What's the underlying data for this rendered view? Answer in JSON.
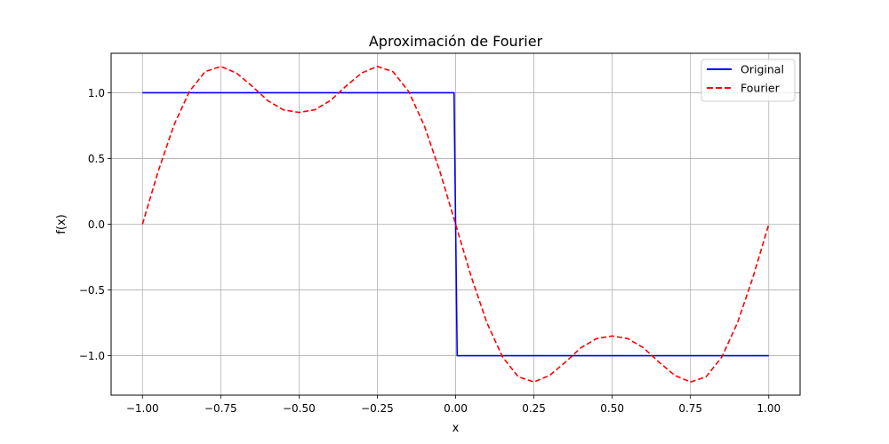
{
  "chart_data": {
    "type": "line",
    "title": "Aproximación de Fourier",
    "xlabel": "x",
    "ylabel": "f(x)",
    "xlim": [
      -1.1,
      1.1
    ],
    "ylim": [
      -1.3,
      1.3
    ],
    "xticks": [
      -1.0,
      -0.75,
      -0.5,
      -0.25,
      0.0,
      0.25,
      0.5,
      0.75,
      1.0
    ],
    "xtick_labels": [
      "−1.00",
      "−0.75",
      "−0.50",
      "−0.25",
      "0.00",
      "0.25",
      "0.50",
      "0.75",
      "1.00"
    ],
    "yticks": [
      -1.0,
      -0.5,
      0.0,
      0.5,
      1.0
    ],
    "ytick_labels": [
      "−1.0",
      "−0.5",
      "0.0",
      "0.5",
      "1.0"
    ],
    "grid": true,
    "legend_position": "top-right",
    "series": [
      {
        "name": "Original",
        "color": "#0000ff",
        "style": "solid",
        "x": [
          -1.0,
          -0.005,
          0.005,
          1.0
        ],
        "y": [
          1.0,
          1.0,
          -1.0,
          -1.0
        ]
      },
      {
        "name": "Fourier",
        "color": "#ff0000",
        "style": "dashed",
        "x": [
          -1.0,
          -0.95,
          -0.9,
          -0.85,
          -0.8,
          -0.75,
          -0.7,
          -0.65,
          -0.6,
          -0.55,
          -0.5,
          -0.45,
          -0.4,
          -0.35,
          -0.3,
          -0.25,
          -0.2,
          -0.15,
          -0.1,
          -0.05,
          0.0,
          0.05,
          0.1,
          0.15,
          0.2,
          0.25,
          0.3,
          0.35,
          0.4,
          0.45,
          0.5,
          0.55,
          0.6,
          0.65,
          0.7,
          0.75,
          0.8,
          0.85,
          0.9,
          0.95,
          1.0
        ],
        "y": [
          0.0,
          0.4,
          0.75,
          1.01,
          1.16,
          1.2,
          1.15,
          1.05,
          0.94,
          0.87,
          0.85,
          0.87,
          0.94,
          1.05,
          1.15,
          1.2,
          1.16,
          1.01,
          0.75,
          0.4,
          0.0,
          -0.4,
          -0.75,
          -1.01,
          -1.16,
          -1.2,
          -1.15,
          -1.05,
          -0.94,
          -0.87,
          -0.85,
          -0.87,
          -0.94,
          -1.05,
          -1.15,
          -1.2,
          -1.16,
          -1.01,
          -0.75,
          -0.4,
          0.0
        ]
      }
    ]
  }
}
